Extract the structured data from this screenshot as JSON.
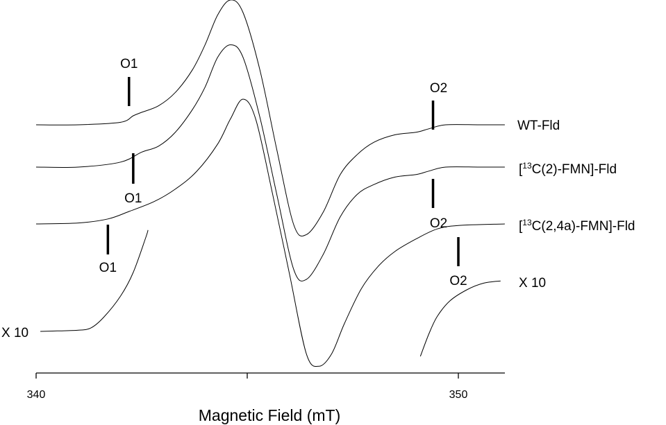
{
  "chart_data": {
    "type": "line",
    "xlabel": "Magnetic Field (mT)",
    "ylabel": "",
    "xlim": [
      340,
      351.1
    ],
    "x_ticks": [
      340,
      345,
      350
    ],
    "x_tick_labels": [
      "340",
      "",
      "350"
    ],
    "series": [
      {
        "name": "WT-Fld",
        "points": [
          [
            340,
            0.0
          ],
          [
            341,
            0.0
          ],
          [
            342,
            0.05
          ],
          [
            342.3,
            0.18
          ],
          [
            342.5,
            0.25
          ],
          [
            342.9,
            0.38
          ],
          [
            343.3,
            0.65
          ],
          [
            343.7,
            1.1
          ],
          [
            344,
            1.6
          ],
          [
            344.3,
            2.2
          ],
          [
            344.6,
            2.5
          ],
          [
            344.9,
            2.25
          ],
          [
            345.3,
            1.1
          ],
          [
            345.7,
            -0.5
          ],
          [
            346.1,
            -2.0
          ],
          [
            346.4,
            -2.2
          ],
          [
            346.8,
            -1.75
          ],
          [
            347.2,
            -1.0
          ],
          [
            347.6,
            -0.6
          ],
          [
            348,
            -0.35
          ],
          [
            348.5,
            -0.2
          ],
          [
            349,
            -0.15
          ],
          [
            349.3,
            -0.08
          ],
          [
            349.7,
            0.0
          ],
          [
            350.5,
            0.0
          ],
          [
            351.1,
            0.0
          ]
        ],
        "markers": [
          {
            "label": "O1",
            "x": 342.2
          },
          {
            "label": "O2",
            "x": 349.4
          }
        ]
      },
      {
        "name": "[13C(2)-FMN]-Fld",
        "points": [
          [
            340,
            0.0
          ],
          [
            341,
            0.0
          ],
          [
            342,
            0.1
          ],
          [
            342.5,
            0.3
          ],
          [
            342.9,
            0.42
          ],
          [
            343.3,
            0.7
          ],
          [
            343.7,
            1.15
          ],
          [
            344,
            1.6
          ],
          [
            344.3,
            2.2
          ],
          [
            344.6,
            2.45
          ],
          [
            344.9,
            2.2
          ],
          [
            345.3,
            1.0
          ],
          [
            345.7,
            -0.55
          ],
          [
            346.1,
            -2.05
          ],
          [
            346.4,
            -2.25
          ],
          [
            346.8,
            -1.75
          ],
          [
            347.2,
            -1.0
          ],
          [
            347.6,
            -0.55
          ],
          [
            348,
            -0.35
          ],
          [
            348.5,
            -0.2
          ],
          [
            349,
            -0.15
          ],
          [
            349.3,
            -0.08
          ],
          [
            349.7,
            0.0
          ],
          [
            350.5,
            0.0
          ],
          [
            351.1,
            0.0
          ]
        ],
        "markers": [
          {
            "label": "O1",
            "x": 342.3
          },
          {
            "label": "O2",
            "x": 349.4
          }
        ]
      },
      {
        "name": "[13C(2,4a)-FMN]-Fld",
        "points": [
          [
            340,
            0.0
          ],
          [
            341,
            0.02
          ],
          [
            341.7,
            0.1
          ],
          [
            342.2,
            0.25
          ],
          [
            342.8,
            0.45
          ],
          [
            343.3,
            0.7
          ],
          [
            343.8,
            1.05
          ],
          [
            344.3,
            1.6
          ],
          [
            344.6,
            2.1
          ],
          [
            344.9,
            2.5
          ],
          [
            345.2,
            2.1
          ],
          [
            345.6,
            0.6
          ],
          [
            346,
            -1.0
          ],
          [
            346.4,
            -2.6
          ],
          [
            346.7,
            -2.85
          ],
          [
            347,
            -2.6
          ],
          [
            347.3,
            -2.0
          ],
          [
            347.7,
            -1.3
          ],
          [
            348.1,
            -0.85
          ],
          [
            348.5,
            -0.55
          ],
          [
            349,
            -0.3
          ],
          [
            349.5,
            -0.1
          ],
          [
            350,
            -0.03
          ],
          [
            351.1,
            0.0
          ]
        ],
        "markers": [
          {
            "label": "O1",
            "x": 341.7
          },
          {
            "label": "O2",
            "x": 350
          }
        ]
      },
      {
        "name": "",
        "note_label": "X 10",
        "points": [
          [
            340.1,
            0.0
          ],
          [
            340.5,
            0.02
          ],
          [
            341,
            0.05
          ],
          [
            341.3,
            0.15
          ],
          [
            341.6,
            0.6
          ],
          [
            342,
            1.5
          ],
          [
            342.3,
            2.5
          ],
          [
            342.6,
            4.0
          ],
          [
            342.65,
            4.3
          ]
        ]
      },
      {
        "name": "",
        "note_label": "X 10",
        "points": [
          [
            349.1,
            0.0
          ],
          [
            349.3,
            1.0
          ],
          [
            349.5,
            1.8
          ],
          [
            349.8,
            2.5
          ],
          [
            350.2,
            3.0
          ],
          [
            350.6,
            3.3
          ],
          [
            351,
            3.4
          ]
        ]
      }
    ],
    "annotations": [
      "O1",
      "O1",
      "O1",
      "O2",
      "O2",
      "O2",
      "X 10",
      "X 10"
    ]
  }
}
